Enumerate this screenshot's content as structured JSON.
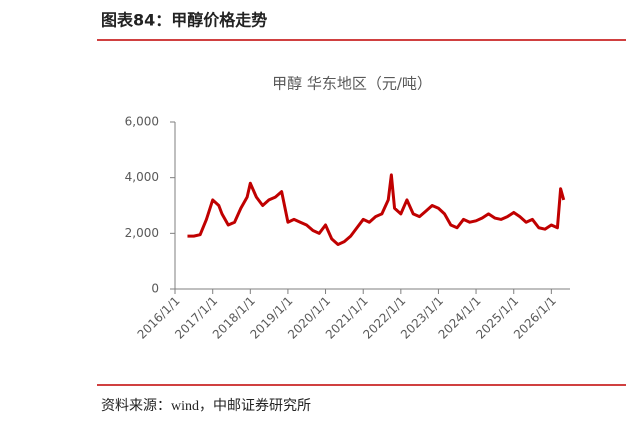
{
  "header": {
    "title": "图表84：甲醇价格走势"
  },
  "chart_data": {
    "type": "line",
    "title": "甲醇 华东地区（元/吨）",
    "color": "#c00000",
    "x": [
      "2016/5/1",
      "2016/7/1",
      "2016/9/1",
      "2016/11/1",
      "2017/1/1",
      "2017/3/1",
      "2017/4/1",
      "2017/6/1",
      "2017/8/1",
      "2017/10/1",
      "2017/12/1",
      "2018/1/1",
      "2018/3/1",
      "2018/5/1",
      "2018/7/1",
      "2018/9/1",
      "2018/11/1",
      "2019/1/1",
      "2019/3/1",
      "2019/5/1",
      "2019/7/1",
      "2019/9/1",
      "2019/11/1",
      "2020/1/1",
      "2020/3/1",
      "2020/5/1",
      "2020/7/1",
      "2020/9/1",
      "2020/11/1",
      "2021/1/1",
      "2021/3/1",
      "2021/5/1",
      "2021/7/1",
      "2021/9/1",
      "2021/10/1",
      "2021/11/1",
      "2022/1/1",
      "2022/3/1",
      "2022/5/1",
      "2022/7/1",
      "2022/9/1",
      "2022/11/1",
      "2023/1/1",
      "2023/3/1",
      "2023/5/1",
      "2023/7/1",
      "2023/9/1",
      "2023/11/1",
      "2024/1/1",
      "2024/3/1",
      "2024/5/1",
      "2024/7/1",
      "2024/9/1",
      "2024/11/1",
      "2025/1/1",
      "2025/3/1",
      "2025/5/1",
      "2025/7/1",
      "2025/9/1",
      "2025/11/1",
      "2026/1/1",
      "2026/3/1",
      "2026/4/1",
      "2026/5/1"
    ],
    "values": [
      1900,
      1900,
      1950,
      2500,
      3200,
      3000,
      2700,
      2300,
      2400,
      2900,
      3300,
      3800,
      3300,
      3000,
      3200,
      3300,
      3500,
      2400,
      2500,
      2400,
      2300,
      2100,
      2000,
      2300,
      1800,
      1600,
      1700,
      1900,
      2200,
      2500,
      2400,
      2600,
      2700,
      3200,
      4100,
      2900,
      2700,
      3200,
      2700,
      2600,
      2800,
      3000,
      2900,
      2700,
      2300,
      2200,
      2500,
      2400,
      2450,
      2550,
      2700,
      2550,
      2500,
      2600,
      2750,
      2600,
      2400,
      2500,
      2200,
      2150,
      2300,
      2200,
      3600,
      3200
    ],
    "xlim": [
      "2016/1/1",
      "2026/7/1"
    ],
    "xticks": [
      "2016/1/1",
      "2017/1/1",
      "2018/1/1",
      "2019/1/1",
      "2020/1/1",
      "2021/1/1",
      "2022/1/1",
      "2023/1/1",
      "2024/1/1",
      "2025/1/1",
      "2026/1/1"
    ],
    "ylim": [
      0,
      6000
    ],
    "yticks": [
      0,
      {
        "value": 2000,
        "label": "2,000"
      },
      {
        "value": 4000,
        "label": "4,000"
      },
      {
        "value": 6000,
        "label": "6,000"
      }
    ]
  },
  "footer": {
    "source": "资料来源：wind，中邮证券研究所"
  }
}
